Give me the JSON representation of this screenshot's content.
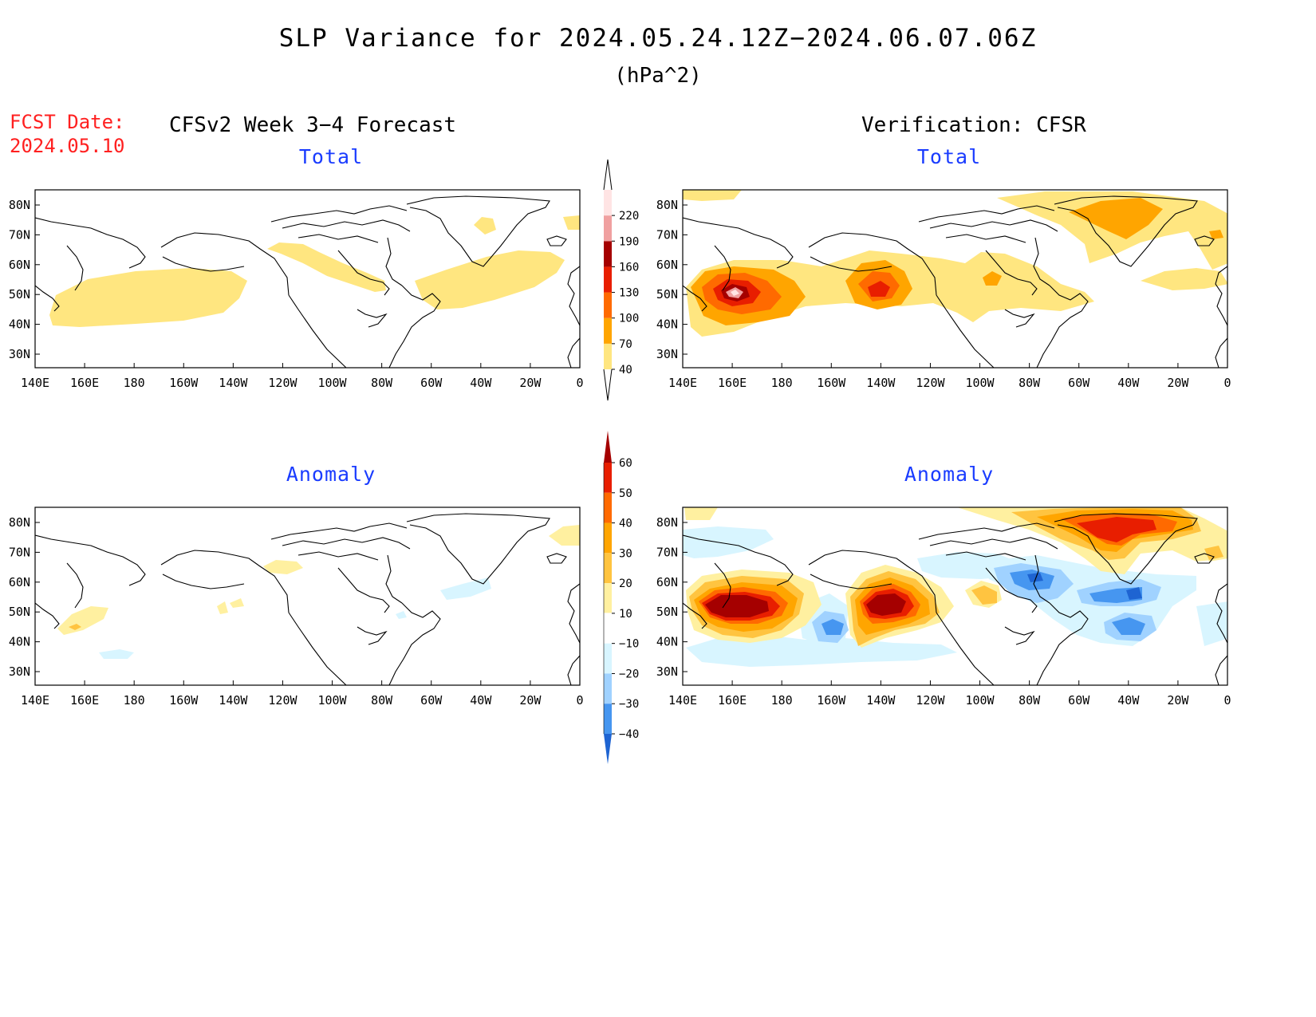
{
  "header": {
    "title": "SLP Variance for 2024.05.24.12Z−2024.06.07.06Z",
    "units": "(hPa^2)",
    "fcst_date_label": "FCST Date:",
    "fcst_date_value": "2024.05.10",
    "left_column_title": "CFSv2 Week 3−4 Forecast",
    "right_column_title": "Verification: CFSR"
  },
  "panels": {
    "fcst_total": {
      "title": "Total"
    },
    "verif_total": {
      "title": "Total"
    },
    "fcst_anomaly": {
      "title": "Anomaly"
    },
    "verif_anomaly": {
      "title": "Anomaly"
    }
  },
  "axes": {
    "lon_labels": [
      "140E",
      "160E",
      "180",
      "160W",
      "140W",
      "120W",
      "100W",
      "80W",
      "60W",
      "40W",
      "20W",
      "0"
    ],
    "lat_labels": [
      "80N",
      "70N",
      "60N",
      "50N",
      "40N",
      "30N"
    ]
  },
  "colorbars": {
    "total": {
      "levels": [
        "40",
        "70",
        "100",
        "130",
        "160",
        "190",
        "220"
      ],
      "colors": [
        "#ffe680",
        "#ffa500",
        "#ff6a00",
        "#e81e00",
        "#a50000",
        "#f0a0a0",
        "#ffe4e4"
      ]
    },
    "anomaly": {
      "levels": [
        "60",
        "50",
        "40",
        "30",
        "20",
        "10",
        "−10",
        "−20",
        "−30",
        "−40"
      ],
      "colors": [
        "#a50000",
        "#e81e00",
        "#ff6a00",
        "#ffa500",
        "#ffc440",
        "#fff0a0",
        "#ffffff",
        "#d8f5ff",
        "#a0d2ff",
        "#4696f0",
        "#1e64d2"
      ]
    }
  },
  "colors": {
    "title_text": "#000000",
    "fcst_date": "#ff2020",
    "panel_title": "#1a3cff"
  }
}
